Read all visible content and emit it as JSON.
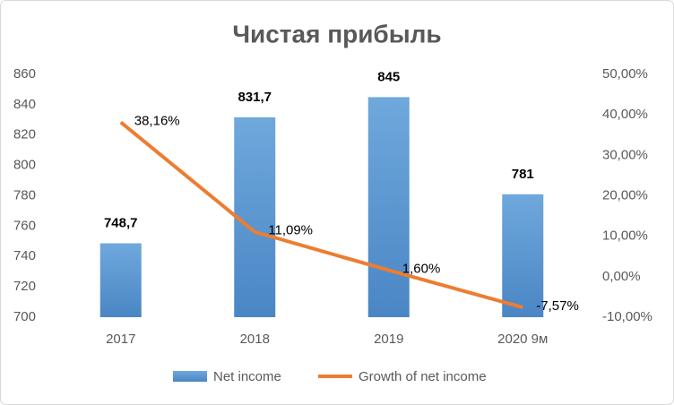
{
  "chart_data": {
    "type": "combo",
    "title": "Чистая прибыль",
    "categories": [
      "2017",
      "2018",
      "2019",
      "2020 9м"
    ],
    "series": [
      {
        "name": "Net income",
        "type": "bar",
        "color": "#5b9bd5",
        "values": [
          748.7,
          831.7,
          845,
          781
        ],
        "value_labels": [
          "748,7",
          "831,7",
          "845",
          "781"
        ]
      },
      {
        "name": "Growth of net income",
        "type": "line",
        "axis": "y2",
        "color": "#ed7d31",
        "values": [
          38.16,
          11.09,
          1.6,
          -7.57
        ],
        "value_labels": [
          "38,16%",
          "11,09%",
          "1,60%",
          "-7,57%"
        ]
      }
    ],
    "ylim": [
      700,
      860
    ],
    "yticks": [
      700,
      720,
      740,
      760,
      780,
      800,
      820,
      840,
      860
    ],
    "y2lim": [
      -10,
      50
    ],
    "y2ticks": [
      {
        "value": -10,
        "label": "-10,00%"
      },
      {
        "value": 0,
        "label": "0,00%"
      },
      {
        "value": 10,
        "label": "10,00%"
      },
      {
        "value": 20,
        "label": "20,00%"
      },
      {
        "value": 30,
        "label": "30,00%"
      },
      {
        "value": 40,
        "label": "40,00%"
      },
      {
        "value": 50,
        "label": "50,00%"
      }
    ],
    "grid": false,
    "legend": "bottom"
  }
}
